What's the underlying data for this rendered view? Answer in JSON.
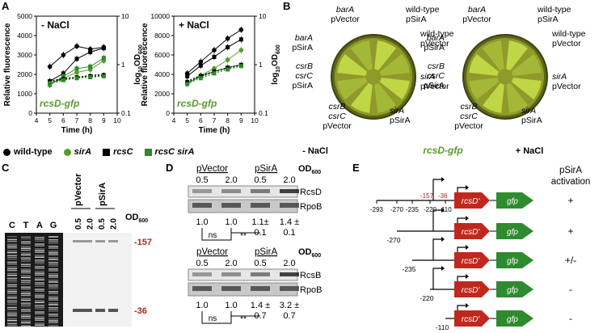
{
  "panels": {
    "A": {
      "label": "A"
    },
    "B": {
      "label": "B"
    },
    "C": {
      "label": "C"
    },
    "D": {
      "label": "D"
    },
    "E": {
      "label": "E"
    }
  },
  "panelA": {
    "strain_label": "rcsD-gfp",
    "ylabel": "Relative fluorescence",
    "y2label_main": "log",
    "y2label_sub": "10",
    "y2label_tail": "OD",
    "y2label_sub2": "600",
    "xlabel": "Time (h)",
    "y2_ticks": [
      "10",
      "1",
      "0.1"
    ],
    "x_ticks": [
      "4",
      "5",
      "6",
      "7",
      "8",
      "9",
      "10"
    ],
    "legend": [
      {
        "name": "wild-type",
        "italic": false,
        "color": "#000000",
        "shape": "circle"
      },
      {
        "name": "sirA",
        "italic": true,
        "color": "#5a9a2a",
        "shape": "circle"
      },
      {
        "name": "rcsC",
        "italic": true,
        "color": "#000000",
        "shape": "square"
      },
      {
        "name": "rcsC sirA",
        "italic": true,
        "color": "#2a8a2a",
        "shape": "square"
      }
    ]
  },
  "chart_data": [
    {
      "type": "line",
      "title": "- NaCl",
      "xlabel": "Time (h)",
      "ylabel": "Relative fluorescence",
      "xlim": [
        4,
        10
      ],
      "ylim": [
        0,
        5000
      ],
      "y_ticks": [
        0,
        1000,
        2000,
        3000,
        4000,
        5000
      ],
      "x": [
        5,
        6,
        7,
        8,
        9
      ],
      "series": [
        {
          "name": "wild-type",
          "values": [
            2400,
            3000,
            3450,
            3300,
            3400
          ]
        },
        {
          "name": "sirA",
          "values": [
            1500,
            1800,
            2100,
            2250,
            2700
          ]
        },
        {
          "name": "rcsC",
          "values": [
            1650,
            2050,
            2800,
            3150,
            3350
          ]
        },
        {
          "name": "rcsC sirA",
          "values": [
            1450,
            1900,
            2300,
            2400,
            2850
          ]
        },
        {
          "name": "wild-type OD",
          "values": [
            1650,
            1800,
            1850,
            1950,
            2000
          ]
        },
        {
          "name": "sirA OD",
          "values": [
            1500,
            1700,
            1800,
            1850,
            1950
          ]
        },
        {
          "name": "rcsC OD",
          "values": [
            1600,
            1750,
            1850,
            1900,
            1950
          ]
        },
        {
          "name": "rcsC sirA OD",
          "values": [
            1550,
            1700,
            1800,
            1850,
            1900
          ]
        }
      ]
    },
    {
      "type": "line",
      "title": "+ NaCl",
      "xlabel": "Time (h)",
      "ylabel": "Relative fluorescence",
      "xlim": [
        4,
        10
      ],
      "ylim": [
        0,
        10000
      ],
      "y_ticks": [
        0,
        2000,
        4000,
        6000,
        8000,
        10000
      ],
      "x": [
        5,
        6,
        7,
        8,
        9
      ],
      "series": [
        {
          "name": "wild-type",
          "values": [
            4100,
            5300,
            6500,
            7700,
            8600
          ]
        },
        {
          "name": "sirA",
          "values": [
            3000,
            3900,
            4600,
            5500,
            6500
          ]
        },
        {
          "name": "rcsC",
          "values": [
            3800,
            4900,
            5800,
            6800,
            7600
          ]
        },
        {
          "name": "rcsC sirA",
          "values": [
            3100,
            3800,
            4300,
            4700,
            5000
          ]
        },
        {
          "name": "wild-type OD",
          "values": [
            3300,
            3900,
            4300,
            4700,
            5000
          ]
        },
        {
          "name": "sirA OD",
          "values": [
            3100,
            3700,
            4200,
            4600,
            4900
          ]
        },
        {
          "name": "rcsC OD",
          "values": [
            3200,
            3800,
            4300,
            4700,
            4950
          ]
        },
        {
          "name": "rcsC sirA OD",
          "values": [
            3000,
            3600,
            4100,
            4500,
            4850
          ]
        }
      ]
    }
  ],
  "panelB": {
    "plates": [
      {
        "condition": "- NaCl",
        "labels": [
          {
            "lines": [
              "barA",
              "pVector"
            ],
            "italic_first": true
          },
          {
            "lines": [
              "wild-type",
              "pSirA"
            ],
            "italic_first": false
          },
          {
            "lines": [
              "wild-type",
              "pVector"
            ],
            "italic_first": false
          },
          {
            "lines": [
              "sirA",
              "pVector"
            ],
            "italic_first": true
          },
          {
            "lines": [
              "sirA",
              "pSirA"
            ],
            "italic_first": true
          },
          {
            "lines": [
              "csrB",
              "csrC",
              "pVector"
            ],
            "italic_first": true
          },
          {
            "lines": [
              "csrB",
              "csrC",
              "pSirA"
            ],
            "italic_first": true
          },
          {
            "lines": [
              "barA",
              "pSirA"
            ],
            "italic_first": true
          }
        ]
      },
      {
        "condition": "+ NaCl",
        "labels": [
          {
            "lines": [
              "barA",
              "pVector"
            ],
            "italic_first": true
          },
          {
            "lines": [
              "wild-type",
              "pSirA"
            ],
            "italic_first": false
          },
          {
            "lines": [
              "wild-type",
              "pVector"
            ],
            "italic_first": false
          },
          {
            "lines": [
              "sirA",
              "pVector"
            ],
            "italic_first": true
          },
          {
            "lines": [
              "sirA",
              "pSirA"
            ],
            "italic_first": true
          },
          {
            "lines": [
              "csrB",
              "csrC",
              "pVector"
            ],
            "italic_first": true
          },
          {
            "lines": [
              "csrB",
              "csrC",
              "pSirA"
            ],
            "italic_first": true
          },
          {
            "lines": [
              "barA",
              "pSirA"
            ],
            "italic_first": true
          }
        ]
      }
    ],
    "strain_label": "rcsD-gfp"
  },
  "panelC": {
    "lanes": [
      "C",
      "T",
      "A",
      "G"
    ],
    "group1": "pVector",
    "group2": "pSirA",
    "od_values": [
      "0.5",
      "2.0",
      "0.5",
      "2.0"
    ],
    "od_label": "OD",
    "od_sub": "600",
    "markers": [
      "-157",
      "-36"
    ]
  },
  "panelD": {
    "group1": "pVector",
    "group2": "pSirA",
    "od_label": "OD",
    "od_sub": "600",
    "od_values": [
      "0.5",
      "2.0",
      "0.5",
      "2.0"
    ],
    "blot1": {
      "target": "RcsD",
      "loading": "RpoB",
      "values": [
        "1.0",
        "1.0",
        "1.1±",
        "1.4 ±"
      ],
      "errors": [
        "0.1",
        "0.1"
      ],
      "ns": "ns",
      "sig": "**"
    },
    "blot2": {
      "target": "RcsB",
      "loading": "RpoB",
      "values": [
        "1.0",
        "1.0",
        "1.4 ±",
        "3.2 ±"
      ],
      "errors": [
        "0.7",
        "0.7"
      ],
      "ns": "ns",
      "sig": "**"
    }
  },
  "panelE": {
    "header_line1": "pSirA",
    "header_line2": "activation",
    "positions": [
      "-293",
      "-270",
      "-235",
      "-220",
      "-110"
    ],
    "markers": [
      "-157",
      "-36"
    ],
    "gene1": "rcsD'",
    "gene2": "gfp",
    "constructs": [
      {
        "start": "-293",
        "activation": "+"
      },
      {
        "start": "-270",
        "activation": "+"
      },
      {
        "start": "-235",
        "activation": "+/-"
      },
      {
        "start": "-220",
        "activation": "-"
      },
      {
        "start": "-110",
        "activation": "-"
      }
    ]
  },
  "colors": {
    "green": "#5a9a2a",
    "dark_green": "#2a8a2a",
    "red_marker": "#b22222",
    "gene_red": "#c0281e",
    "gene_green": "#2e8b2e",
    "plate": "#8f9a2a"
  }
}
